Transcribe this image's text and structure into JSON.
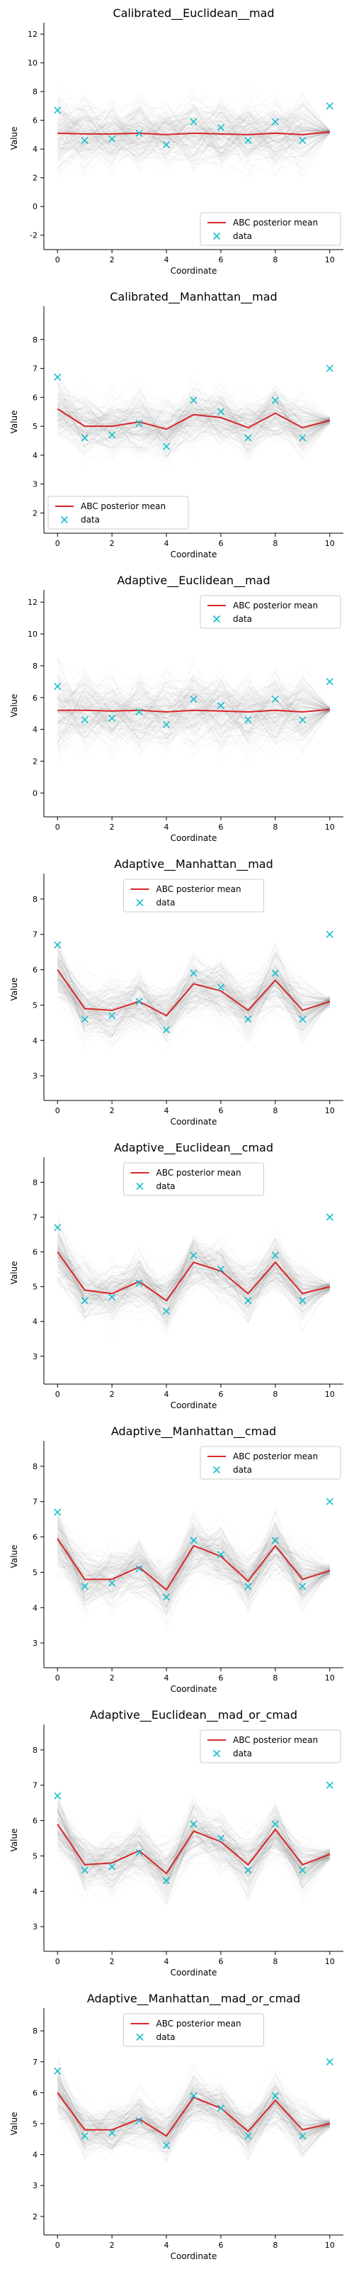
{
  "colors": {
    "mean_line": "#d62728",
    "data_marker": "#17becf",
    "simulation_lines": "#7f7f7f"
  },
  "chart_data": [
    {
      "type": "line",
      "title": "Calibrated__Euclidean__mad",
      "xlabel": "Coordinate",
      "ylabel": "Value",
      "xlim": [
        -0.5,
        10.5
      ],
      "ylim": [
        -3,
        12.5
      ],
      "x_ticks": [
        0,
        2,
        4,
        6,
        8,
        10
      ],
      "y_ticks": [
        -2,
        0,
        2,
        4,
        6,
        8,
        10,
        12
      ],
      "legend_position": "lower right",
      "legend": [
        "ABC posterior mean",
        "data"
      ],
      "series": [
        {
          "name": "ABC posterior mean",
          "x": [
            0,
            1,
            2,
            3,
            4,
            5,
            6,
            7,
            8,
            9,
            10
          ],
          "values": [
            5.1,
            5.05,
            5.05,
            5.1,
            5.0,
            5.1,
            5.05,
            5.0,
            5.1,
            5.0,
            5.2
          ]
        },
        {
          "name": "data",
          "x": [
            0,
            1,
            2,
            3,
            4,
            5,
            6,
            7,
            8,
            9,
            10
          ],
          "values": [
            6.7,
            4.6,
            4.7,
            5.1,
            4.3,
            5.9,
            5.5,
            4.6,
            5.9,
            4.6,
            7.0
          ]
        }
      ],
      "background_spread": {
        "low": [
          -2,
          -0.5,
          0,
          -0.5,
          0,
          -0.5,
          0,
          -0.5,
          0,
          0,
          4.8
        ],
        "high": [
          12,
          11,
          10.5,
          11,
          10.5,
          11,
          11,
          10.5,
          11,
          10.5,
          5.5
        ]
      }
    },
    {
      "type": "line",
      "title": "Calibrated__Manhattan__mad",
      "xlabel": "Coordinate",
      "ylabel": "Value",
      "xlim": [
        -0.5,
        10.5
      ],
      "ylim": [
        1.3,
        9
      ],
      "x_ticks": [
        0,
        2,
        4,
        6,
        8,
        10
      ],
      "y_ticks": [
        2,
        3,
        4,
        5,
        6,
        7,
        8
      ],
      "legend_position": "lower left",
      "legend": [
        "ABC posterior mean",
        "data"
      ],
      "series": [
        {
          "name": "ABC posterior mean",
          "x": [
            0,
            1,
            2,
            3,
            4,
            5,
            6,
            7,
            8,
            9,
            10
          ],
          "values": [
            5.6,
            5.0,
            5.0,
            5.15,
            4.9,
            5.4,
            5.3,
            4.95,
            5.45,
            4.95,
            5.2
          ]
        },
        {
          "name": "data",
          "x": [
            0,
            1,
            2,
            3,
            4,
            5,
            6,
            7,
            8,
            9,
            10
          ],
          "values": [
            6.7,
            4.6,
            4.7,
            5.1,
            4.3,
            5.9,
            5.5,
            4.6,
            5.9,
            4.6,
            7.0
          ]
        }
      ],
      "background_spread": {
        "low": [
          3.5,
          2.6,
          2.8,
          2.7,
          2.6,
          3.0,
          3.0,
          2.7,
          3.0,
          2.8,
          4.9
        ],
        "high": [
          8.6,
          7.8,
          7.5,
          7.6,
          7.4,
          7.9,
          7.8,
          7.5,
          7.9,
          7.4,
          5.5
        ]
      }
    },
    {
      "type": "line",
      "title": "Adaptive__Euclidean__mad",
      "xlabel": "Coordinate",
      "ylabel": "Value",
      "xlim": [
        -0.5,
        10.5
      ],
      "ylim": [
        -1.5,
        12.5
      ],
      "x_ticks": [
        0,
        2,
        4,
        6,
        8,
        10
      ],
      "y_ticks": [
        0,
        2,
        4,
        6,
        8,
        10,
        12
      ],
      "legend_position": "upper right",
      "legend": [
        "ABC posterior mean",
        "data"
      ],
      "series": [
        {
          "name": "ABC posterior mean",
          "x": [
            0,
            1,
            2,
            3,
            4,
            5,
            6,
            7,
            8,
            9,
            10
          ],
          "values": [
            5.2,
            5.2,
            5.15,
            5.2,
            5.1,
            5.2,
            5.15,
            5.1,
            5.2,
            5.1,
            5.25
          ]
        },
        {
          "name": "data",
          "x": [
            0,
            1,
            2,
            3,
            4,
            5,
            6,
            7,
            8,
            9,
            10
          ],
          "values": [
            6.7,
            4.6,
            4.7,
            5.1,
            4.3,
            5.9,
            5.5,
            4.6,
            5.9,
            4.6,
            7.0
          ]
        }
      ],
      "background_spread": {
        "low": [
          -1,
          -0.5,
          0,
          -0.5,
          0,
          -0.5,
          0,
          -0.5,
          0,
          0,
          4.8
        ],
        "high": [
          12,
          11,
          10.5,
          11,
          10.5,
          11,
          11,
          10.5,
          11,
          10.5,
          5.6
        ]
      }
    },
    {
      "type": "line",
      "title": "Adaptive__Manhattan__mad",
      "xlabel": "Coordinate",
      "ylabel": "Value",
      "xlim": [
        -0.5,
        10.5
      ],
      "ylim": [
        2.3,
        8.6
      ],
      "x_ticks": [
        0,
        2,
        4,
        6,
        8,
        10
      ],
      "y_ticks": [
        3,
        4,
        5,
        6,
        7,
        8
      ],
      "legend_position": "upper center",
      "legend": [
        "ABC posterior mean",
        "data"
      ],
      "series": [
        {
          "name": "ABC posterior mean",
          "x": [
            0,
            1,
            2,
            3,
            4,
            5,
            6,
            7,
            8,
            9,
            10
          ],
          "values": [
            6.0,
            4.9,
            4.85,
            5.1,
            4.7,
            5.6,
            5.4,
            4.85,
            5.7,
            4.85,
            5.1
          ]
        },
        {
          "name": "data",
          "x": [
            0,
            1,
            2,
            3,
            4,
            5,
            6,
            7,
            8,
            9,
            10
          ],
          "values": [
            6.7,
            4.6,
            4.7,
            5.1,
            4.3,
            5.9,
            5.5,
            4.6,
            5.9,
            4.6,
            7.0
          ]
        }
      ],
      "background_spread": {
        "low": [
          4.0,
          3.0,
          3.0,
          3.2,
          2.9,
          3.6,
          3.4,
          3.0,
          3.6,
          3.0,
          4.7
        ],
        "high": [
          8.3,
          7.0,
          7.0,
          7.2,
          6.9,
          7.6,
          7.5,
          7.0,
          7.7,
          7.0,
          5.4
        ]
      }
    },
    {
      "type": "line",
      "title": "Adaptive__Euclidean__cmad",
      "xlabel": "Coordinate",
      "ylabel": "Value",
      "xlim": [
        -0.5,
        10.5
      ],
      "ylim": [
        2.2,
        8.6
      ],
      "x_ticks": [
        0,
        2,
        4,
        6,
        8,
        10
      ],
      "y_ticks": [
        3,
        4,
        5,
        6,
        7,
        8
      ],
      "legend_position": "upper center",
      "legend": [
        "ABC posterior mean",
        "data"
      ],
      "series": [
        {
          "name": "ABC posterior mean",
          "x": [
            0,
            1,
            2,
            3,
            4,
            5,
            6,
            7,
            8,
            9,
            10
          ],
          "values": [
            6.0,
            4.9,
            4.8,
            5.15,
            4.6,
            5.7,
            5.45,
            4.8,
            5.7,
            4.8,
            5.0
          ]
        },
        {
          "name": "data",
          "x": [
            0,
            1,
            2,
            3,
            4,
            5,
            6,
            7,
            8,
            9,
            10
          ],
          "values": [
            6.7,
            4.6,
            4.7,
            5.1,
            4.3,
            5.9,
            5.5,
            4.6,
            5.9,
            4.6,
            7.0
          ]
        }
      ],
      "background_spread": {
        "low": [
          4.0,
          3.0,
          3.0,
          3.2,
          2.8,
          3.7,
          3.5,
          2.9,
          3.7,
          3.0,
          4.6
        ],
        "high": [
          8.2,
          6.9,
          7.0,
          7.1,
          6.8,
          7.7,
          7.4,
          6.9,
          7.6,
          6.9,
          5.4
        ]
      }
    },
    {
      "type": "line",
      "title": "Adaptive__Manhattan__cmad",
      "xlabel": "Coordinate",
      "ylabel": "Value",
      "xlim": [
        -0.5,
        10.5
      ],
      "ylim": [
        2.3,
        8.6
      ],
      "x_ticks": [
        0,
        2,
        4,
        6,
        8,
        10
      ],
      "y_ticks": [
        3,
        4,
        5,
        6,
        7,
        8
      ],
      "legend_position": "upper right",
      "legend": [
        "ABC posterior mean",
        "data"
      ],
      "series": [
        {
          "name": "ABC posterior mean",
          "x": [
            0,
            1,
            2,
            3,
            4,
            5,
            6,
            7,
            8,
            9,
            10
          ],
          "values": [
            5.95,
            4.8,
            4.8,
            5.15,
            4.5,
            5.75,
            5.45,
            4.75,
            5.75,
            4.8,
            5.05
          ]
        },
        {
          "name": "data",
          "x": [
            0,
            1,
            2,
            3,
            4,
            5,
            6,
            7,
            8,
            9,
            10
          ],
          "values": [
            6.7,
            4.6,
            4.7,
            5.1,
            4.3,
            5.9,
            5.5,
            4.6,
            5.9,
            4.6,
            7.0
          ]
        }
      ],
      "background_spread": {
        "low": [
          4.0,
          3.0,
          3.0,
          3.2,
          2.8,
          3.7,
          3.5,
          2.9,
          3.7,
          3.0,
          4.6
        ],
        "high": [
          8.2,
          6.9,
          7.0,
          7.1,
          6.8,
          7.7,
          7.4,
          6.9,
          7.6,
          6.9,
          5.4
        ]
      }
    },
    {
      "type": "line",
      "title": "Adaptive__Euclidean__mad_or_cmad",
      "xlabel": "Coordinate",
      "ylabel": "Value",
      "xlim": [
        -0.5,
        10.5
      ],
      "ylim": [
        2.3,
        8.6
      ],
      "x_ticks": [
        0,
        2,
        4,
        6,
        8,
        10
      ],
      "y_ticks": [
        3,
        4,
        5,
        6,
        7,
        8
      ],
      "legend_position": "upper right",
      "legend": [
        "ABC posterior mean",
        "data"
      ],
      "series": [
        {
          "name": "ABC posterior mean",
          "x": [
            0,
            1,
            2,
            3,
            4,
            5,
            6,
            7,
            8,
            9,
            10
          ],
          "values": [
            5.9,
            4.75,
            4.8,
            5.15,
            4.5,
            5.7,
            5.4,
            4.75,
            5.75,
            4.75,
            5.05
          ]
        },
        {
          "name": "data",
          "x": [
            0,
            1,
            2,
            3,
            4,
            5,
            6,
            7,
            8,
            9,
            10
          ],
          "values": [
            6.7,
            4.6,
            4.7,
            5.1,
            4.3,
            5.9,
            5.5,
            4.6,
            5.9,
            4.6,
            7.0
          ]
        }
      ],
      "background_spread": {
        "low": [
          4.0,
          3.0,
          3.0,
          3.2,
          2.8,
          3.7,
          3.5,
          2.9,
          3.7,
          3.0,
          4.6
        ],
        "high": [
          8.2,
          6.9,
          7.0,
          7.1,
          6.8,
          7.7,
          7.4,
          6.9,
          7.6,
          6.9,
          5.4
        ]
      }
    },
    {
      "type": "line",
      "title": "Adaptive__Manhattan__mad_or_cmad",
      "xlabel": "Coordinate",
      "ylabel": "Value",
      "xlim": [
        -0.5,
        10.5
      ],
      "ylim": [
        1.4,
        8.6
      ],
      "x_ticks": [
        0,
        2,
        4,
        6,
        8,
        10
      ],
      "y_ticks": [
        2,
        3,
        4,
        5,
        6,
        7,
        8
      ],
      "legend_position": "upper center",
      "legend": [
        "ABC posterior mean",
        "data"
      ],
      "series": [
        {
          "name": "ABC posterior mean",
          "x": [
            0,
            1,
            2,
            3,
            4,
            5,
            6,
            7,
            8,
            9,
            10
          ],
          "values": [
            6.0,
            4.8,
            4.8,
            5.15,
            4.6,
            5.85,
            5.5,
            4.75,
            5.75,
            4.8,
            5.0
          ]
        },
        {
          "name": "data",
          "x": [
            0,
            1,
            2,
            3,
            4,
            5,
            6,
            7,
            8,
            9,
            10
          ],
          "values": [
            6.7,
            4.6,
            4.7,
            5.1,
            4.3,
            5.9,
            5.5,
            4.6,
            5.9,
            4.6,
            7.0
          ]
        }
      ],
      "background_spread": {
        "low": [
          3.8,
          3.0,
          3.0,
          3.2,
          2.9,
          3.7,
          3.5,
          2.9,
          3.7,
          3.0,
          4.6
        ],
        "high": [
          8.2,
          6.8,
          6.9,
          7.1,
          6.8,
          7.7,
          7.4,
          6.8,
          7.6,
          6.9,
          5.4
        ]
      }
    }
  ]
}
